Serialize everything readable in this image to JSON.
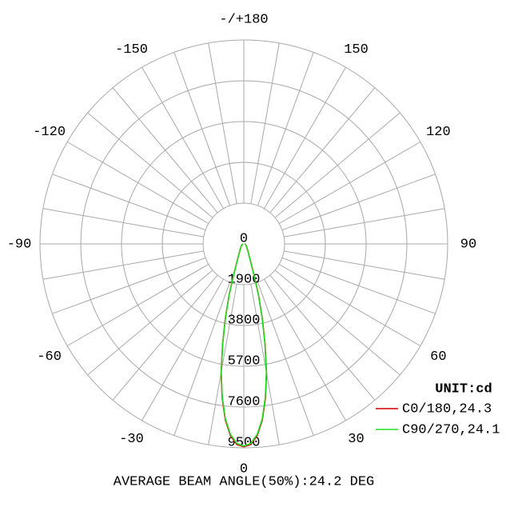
{
  "chart_data": {
    "type": "polar",
    "x": [
      -90,
      -60,
      -40,
      -30,
      -25,
      -20,
      -18,
      -16,
      -14,
      -12,
      -10,
      -8,
      -6,
      -4,
      -2,
      0,
      2,
      4,
      6,
      8,
      10,
      12,
      14,
      16,
      18,
      20,
      25,
      30,
      40,
      60,
      90
    ],
    "series": [
      {
        "name": "C0/180,24.3",
        "color": "#d40000",
        "values": [
          40,
          120,
          230,
          380,
          560,
          1050,
          1600,
          2500,
          3550,
          4750,
          6100,
          7250,
          8250,
          8950,
          9350,
          9450,
          9350,
          8950,
          8250,
          7250,
          6100,
          4750,
          3550,
          2500,
          1600,
          1050,
          560,
          380,
          230,
          120,
          40
        ]
      },
      {
        "name": "C90/270,24.1",
        "color": "#22dd22",
        "values": [
          40,
          110,
          220,
          360,
          540,
          1000,
          1550,
          2450,
          3500,
          4700,
          6050,
          7200,
          8200,
          8900,
          9300,
          9420,
          9300,
          8900,
          8200,
          7200,
          6050,
          4700,
          3500,
          2450,
          1550,
          1000,
          540,
          360,
          220,
          110,
          40
        ]
      }
    ],
    "rlim": [
      0,
      9500
    ],
    "rticks": [
      0,
      1900,
      3800,
      5700,
      7600,
      9500
    ],
    "thetaticks": [
      0,
      30,
      60,
      90,
      120,
      150,
      {
        "value": 180,
        "label": "-/+180"
      },
      -150,
      -120,
      -90,
      -60,
      -30
    ],
    "unit_label": "UNIT:cd",
    "footer": "AVERAGE BEAM ANGLE(50%):24.2 DEG"
  }
}
